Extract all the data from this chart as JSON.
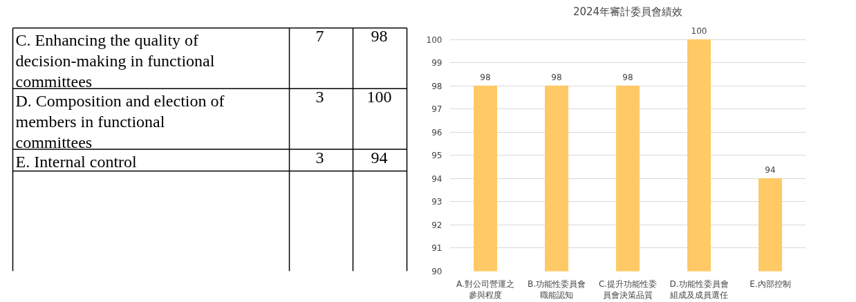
{
  "chart_data": [
    {
      "type": "other",
      "annotations": [
        "C. Enhancing the quality of decision-making in functional committees",
        "7",
        "98",
        "D. Composition and election of members in functional committees",
        "3",
        "100",
        "E. Internal control",
        "3",
        "94"
      ]
    },
    {
      "type": "bar",
      "title": "2024年審計委員會績效",
      "categories": [
        "A.對公司營運之參與程度",
        "B.功能性委員會職能認知",
        "C.提升功能性委員會決策品質",
        "D.功能性委員會組成及成員選任",
        "E.內部控制"
      ],
      "values": [
        98,
        98,
        98,
        100,
        94
      ],
      "color": "#ffc966",
      "ylim": [
        90,
        100
      ],
      "yticks": [
        90,
        91,
        92,
        93,
        94,
        95,
        96,
        97,
        98,
        99,
        100
      ],
      "grid": "y",
      "data_labels": true
    }
  ]
}
